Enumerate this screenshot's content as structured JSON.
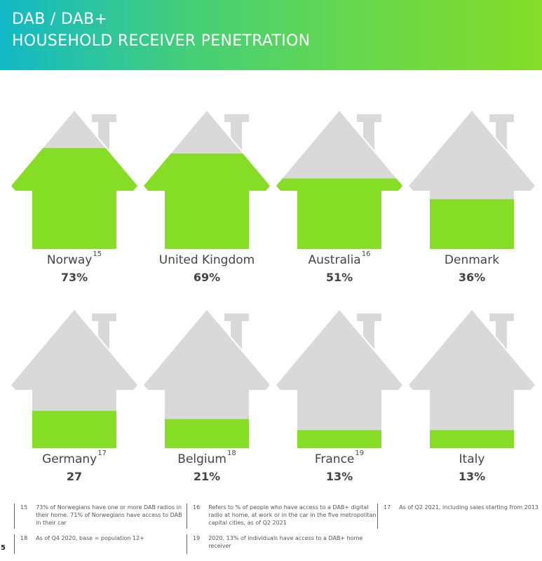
{
  "header": {
    "title_line1": "DAB /  DAB+",
    "title_line2": "HOUSEHOLD RECEIVER PENETRATION"
  },
  "colors": {
    "fill": "#86dd26",
    "empty": "#d9d9d9",
    "text": "#444444"
  },
  "chart_data": {
    "type": "bar",
    "title": "DAB / DAB+ Household Receiver Penetration",
    "categories": [
      "Norway",
      "United Kingdom",
      "Australia",
      "Denmark",
      "Germany",
      "Belgium",
      "France",
      "Italy"
    ],
    "values": [
      73,
      69,
      51,
      36,
      27,
      21,
      13,
      13
    ],
    "value_labels": [
      "73%",
      "69%",
      "51%",
      "36%",
      "27",
      "21%",
      "13%",
      "13%"
    ],
    "footnote_refs": [
      "15",
      "",
      "16",
      "",
      "17",
      "18",
      "19",
      ""
    ],
    "ylim": [
      0,
      100
    ],
    "unit": "%"
  },
  "footnotes": [
    {
      "num": "15",
      "text": "73% of Norwegians have one or more DAB radios in their home. 71% of Norwegians have access to DAB in their car"
    },
    {
      "num": "16",
      "text": "Refers to % of people who have access to a DAB+ digital radio at home, at work or in the car in the five metropolitan capital cities, as of Q2 2021"
    },
    {
      "num": "17",
      "text": "As of Q2 2021, including sales starting from 2013"
    },
    {
      "num": "18",
      "text": "As of Q4 2020, base = population 12+"
    },
    {
      "num": "19",
      "text": "2020, 13% of individuals have access to a DAB+ home receiver"
    }
  ],
  "page_number": "5"
}
